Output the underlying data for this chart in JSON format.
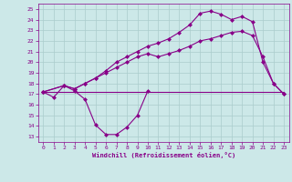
{
  "xlabel": "Windchill (Refroidissement éolien,°C)",
  "bg_color": "#cce8e8",
  "line_color": "#880088",
  "grid_color": "#aacccc",
  "xlim": [
    -0.5,
    23.5
  ],
  "ylim": [
    12.5,
    25.5
  ],
  "yticks": [
    13,
    14,
    15,
    16,
    17,
    18,
    19,
    20,
    21,
    22,
    23,
    24,
    25
  ],
  "xticks": [
    0,
    1,
    2,
    3,
    4,
    5,
    6,
    7,
    8,
    9,
    10,
    11,
    12,
    13,
    14,
    15,
    16,
    17,
    18,
    19,
    20,
    21,
    22,
    23
  ],
  "line1_x": [
    0,
    23
  ],
  "line1_y": [
    17.2,
    17.2
  ],
  "line2_x": [
    0,
    1,
    2,
    3,
    4,
    5,
    6,
    7,
    8,
    9,
    10
  ],
  "line2_y": [
    17.2,
    16.7,
    17.8,
    17.3,
    16.5,
    14.1,
    13.2,
    13.2,
    13.9,
    15.0,
    17.3
  ],
  "line3_x": [
    0,
    2,
    3,
    4,
    5,
    6,
    7,
    8,
    9,
    10,
    11,
    12,
    13,
    14,
    15,
    16,
    17,
    18,
    19,
    20,
    21,
    22,
    23
  ],
  "line3_y": [
    17.2,
    17.8,
    17.5,
    18.0,
    18.5,
    19.0,
    19.5,
    20.0,
    20.5,
    20.8,
    20.5,
    20.8,
    21.1,
    21.5,
    22.0,
    22.2,
    22.5,
    22.8,
    22.9,
    22.5,
    20.5,
    18.0,
    17.0
  ],
  "line4_x": [
    0,
    2,
    3,
    4,
    5,
    6,
    7,
    8,
    9,
    10,
    11,
    12,
    13,
    14,
    15,
    16,
    17,
    18,
    19,
    20,
    21,
    22,
    23
  ],
  "line4_y": [
    17.2,
    17.8,
    17.5,
    18.0,
    18.5,
    19.2,
    20.0,
    20.5,
    21.0,
    21.5,
    21.8,
    22.2,
    22.8,
    23.5,
    24.6,
    24.8,
    24.5,
    24.0,
    24.3,
    23.8,
    20.0,
    18.0,
    17.0
  ]
}
